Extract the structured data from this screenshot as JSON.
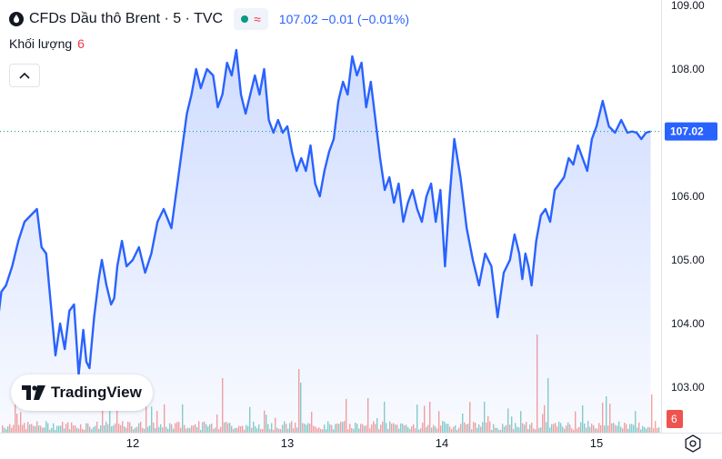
{
  "header": {
    "symbol_title": "CFDs Dầu thô Brent · 5 · TVC",
    "approx_symbol": "≈",
    "price_summary": "107.02  −0.01 (−0.01%)"
  },
  "volume_row": {
    "label": "Khối lượng",
    "value": "6"
  },
  "brand": {
    "text": "TradingView"
  },
  "colors": {
    "line": "#2962ff",
    "area_top": "rgba(41,98,255,0.20)",
    "area_bottom": "rgba(41,98,255,0.02)",
    "vol_up": "#26a69a",
    "vol_down": "#ef5350",
    "price_label_bg": "#2962ff",
    "vol_label_bg": "#ef5350"
  },
  "chart_data": {
    "type": "area",
    "title": "CFDs Dầu thô Brent · 5 · TVC",
    "x_ticks": [
      "12",
      "13",
      "14",
      "15"
    ],
    "x_tick_positions_in_days": [
      1,
      2,
      3,
      4
    ],
    "x_range_days": [
      0.12,
      4.4
    ],
    "y_ticks": [
      "103.00",
      "104.00",
      "105.00",
      "106.00",
      "107.00",
      "108.00",
      "109.00"
    ],
    "ylim": [
      102.45,
      109.05
    ],
    "last_price": 107.02,
    "last_price_label": "107.02",
    "last_volume_label": "6",
    "series": [
      {
        "x": [
          0.12,
          0.15,
          0.18,
          0.22,
          0.26,
          0.3,
          0.34,
          0.38,
          0.41,
          0.44,
          0.47,
          0.5,
          0.53,
          0.56,
          0.59,
          0.62,
          0.65,
          0.68,
          0.7,
          0.72,
          0.75,
          0.78,
          0.8,
          0.83,
          0.86,
          0.88,
          0.9,
          0.93,
          0.96,
          1.0,
          1.04,
          1.08,
          1.12,
          1.16,
          1.2,
          1.25,
          1.3,
          1.35,
          1.38,
          1.41,
          1.44,
          1.48,
          1.52,
          1.55,
          1.58,
          1.61,
          1.64,
          1.67,
          1.7,
          1.73,
          1.76,
          1.79,
          1.82,
          1.85,
          1.88,
          1.91,
          1.94,
          1.97,
          2.0,
          2.03,
          2.06,
          2.09,
          2.12,
          2.15,
          2.18,
          2.21,
          2.24,
          2.27,
          2.3,
          2.33,
          2.36,
          2.39,
          2.42,
          2.45,
          2.48,
          2.51,
          2.54,
          2.57,
          2.6,
          2.63,
          2.66,
          2.69,
          2.72,
          2.75,
          2.78,
          2.81,
          2.84,
          2.87,
          2.9,
          2.93,
          2.96,
          2.99,
          3.02,
          3.05,
          3.08,
          3.12,
          3.16,
          3.2,
          3.24,
          3.28,
          3.32,
          3.36,
          3.4,
          3.44,
          3.47,
          3.5,
          3.52,
          3.54,
          3.56,
          3.58,
          3.61,
          3.64,
          3.67,
          3.7,
          3.73,
          3.76,
          3.79,
          3.82,
          3.85,
          3.88,
          3.91,
          3.94,
          3.97,
          4.0,
          4.04,
          4.08,
          4.12,
          4.16,
          4.2,
          4.23,
          4.26,
          4.29,
          4.32,
          4.35
        ],
        "y": [
          103.9,
          104.5,
          104.6,
          104.9,
          105.3,
          105.6,
          105.7,
          105.8,
          105.2,
          105.1,
          104.3,
          103.5,
          104.0,
          103.6,
          104.2,
          104.3,
          103.2,
          103.9,
          103.4,
          103.3,
          104.1,
          104.7,
          105.0,
          104.6,
          104.3,
          104.4,
          104.9,
          105.3,
          104.9,
          105.0,
          105.2,
          104.8,
          105.1,
          105.6,
          105.8,
          105.5,
          106.4,
          107.3,
          107.6,
          108.0,
          107.7,
          108.0,
          107.9,
          107.4,
          107.6,
          108.1,
          107.9,
          108.3,
          107.6,
          107.3,
          107.6,
          107.9,
          107.6,
          108.0,
          107.2,
          107.0,
          107.2,
          107.0,
          107.1,
          106.7,
          106.4,
          106.6,
          106.4,
          106.8,
          106.2,
          106.0,
          106.4,
          106.7,
          106.9,
          107.5,
          107.8,
          107.6,
          108.2,
          107.9,
          108.1,
          107.4,
          107.8,
          107.2,
          106.6,
          106.1,
          106.3,
          105.9,
          106.2,
          105.6,
          105.9,
          106.1,
          105.8,
          105.6,
          106.0,
          106.2,
          105.6,
          106.1,
          104.9,
          106.0,
          106.9,
          106.3,
          105.5,
          105.0,
          104.6,
          105.1,
          104.9,
          104.1,
          104.8,
          105.0,
          105.4,
          105.1,
          104.7,
          105.1,
          104.9,
          104.6,
          105.3,
          105.7,
          105.8,
          105.6,
          106.1,
          106.2,
          106.3,
          106.6,
          106.5,
          106.8,
          106.6,
          106.4,
          106.9,
          107.1,
          107.5,
          107.1,
          107.0,
          107.2,
          107.0,
          107.02,
          107.0,
          106.9,
          107.0,
          107.02
        ],
        "description": "BRENT close (5-minute), approximated from line"
      }
    ]
  }
}
